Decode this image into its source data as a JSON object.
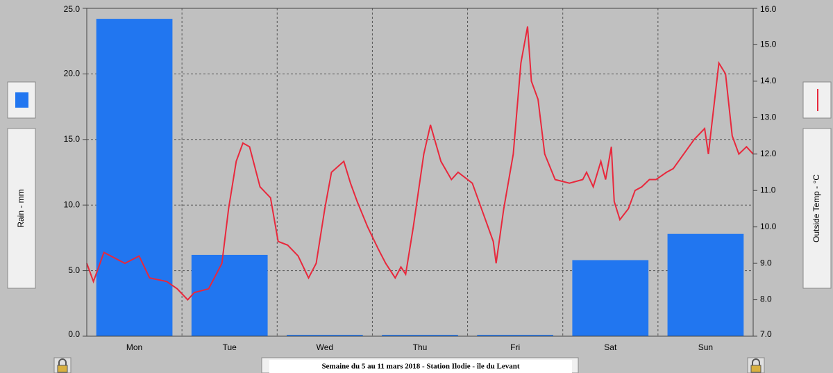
{
  "chart_data": {
    "type": "bar",
    "title": "Semaine du 5 au 11 mars 2018 - Station Ilodie - île du Levant",
    "categories": [
      "Mon",
      "Tue",
      "Wed",
      "Thu",
      "Fri",
      "Sat",
      "Sun"
    ],
    "series": [
      {
        "name": "Rain - mm",
        "color": "#2176f0",
        "values": [
          24.2,
          6.2,
          0.1,
          0.1,
          0.1,
          5.8,
          7.8
        ]
      },
      {
        "name": "Outside Temp - °C",
        "type": "line",
        "axis": "y2",
        "color": "#e8283c",
        "x": [
          0,
          0.07,
          0.18,
          0.4,
          0.55,
          0.66,
          0.84,
          0.95,
          1.06,
          1.13,
          1.28,
          1.42,
          1.49,
          1.57,
          1.64,
          1.71,
          1.82,
          1.93,
          2.01,
          2.11,
          2.22,
          2.33,
          2.41,
          2.5,
          2.57,
          2.7,
          2.77,
          2.84,
          2.95,
          3.06,
          3.14,
          3.24,
          3.3,
          3.35,
          3.43,
          3.54,
          3.61,
          3.72,
          3.83,
          3.9,
          4.05,
          4.16,
          4.27,
          4.3,
          4.38,
          4.48,
          4.56,
          4.63,
          4.67,
          4.74,
          4.81,
          4.92,
          5.07,
          5.21,
          5.25,
          5.32,
          5.4,
          5.45,
          5.51,
          5.54,
          5.6,
          5.69,
          5.76,
          5.83,
          5.91,
          5.98,
          6.09,
          6.16,
          6.27,
          6.38,
          6.49,
          6.53,
          6.64,
          6.71,
          6.78,
          6.85,
          6.93,
          7.0
        ],
        "values": [
          9.0,
          8.5,
          9.3,
          9.0,
          9.2,
          8.6,
          8.5,
          8.3,
          8.0,
          8.2,
          8.3,
          9.0,
          10.5,
          11.8,
          12.3,
          12.2,
          11.1,
          10.8,
          9.6,
          9.5,
          9.2,
          8.6,
          9.0,
          10.5,
          11.5,
          11.8,
          11.2,
          10.7,
          10.0,
          9.4,
          9.0,
          8.6,
          8.9,
          8.7,
          10.0,
          12.0,
          12.8,
          11.8,
          11.3,
          11.5,
          11.2,
          10.4,
          9.6,
          9.0,
          10.5,
          12.0,
          14.5,
          15.5,
          14.0,
          13.5,
          12.0,
          11.3,
          11.2,
          11.3,
          11.5,
          11.1,
          11.8,
          11.3,
          12.2,
          10.7,
          10.2,
          10.5,
          11.0,
          11.1,
          11.3,
          11.3,
          11.5,
          11.6,
          12.0,
          12.4,
          12.7,
          12.0,
          14.5,
          14.2,
          12.5,
          12.0,
          12.2,
          12.0
        ]
      }
    ],
    "xlim": [
      0,
      7
    ],
    "ylim": [
      0,
      25
    ],
    "yticks": [
      {
        "value": 0,
        "label": "0.0"
      },
      {
        "value": 5,
        "label": "5.0"
      },
      {
        "value": 10,
        "label": "10.0"
      },
      {
        "value": 15,
        "label": "15.0"
      },
      {
        "value": 20,
        "label": "20.0"
      },
      {
        "value": 25,
        "label": "25.0"
      }
    ],
    "y2lim": [
      7,
      16
    ],
    "y2ticks": [
      {
        "value": 7,
        "label": "7.0"
      },
      {
        "value": 8,
        "label": "8.0"
      },
      {
        "value": 9,
        "label": "9.0"
      },
      {
        "value": 10,
        "label": "10.0"
      },
      {
        "value": 11,
        "label": "11.0"
      },
      {
        "value": 12,
        "label": "12.0"
      },
      {
        "value": 13,
        "label": "13.0"
      },
      {
        "value": 14,
        "label": "14.0"
      },
      {
        "value": 15,
        "label": "15.0"
      },
      {
        "value": 16,
        "label": "16.0"
      }
    ],
    "grid": true
  }
}
